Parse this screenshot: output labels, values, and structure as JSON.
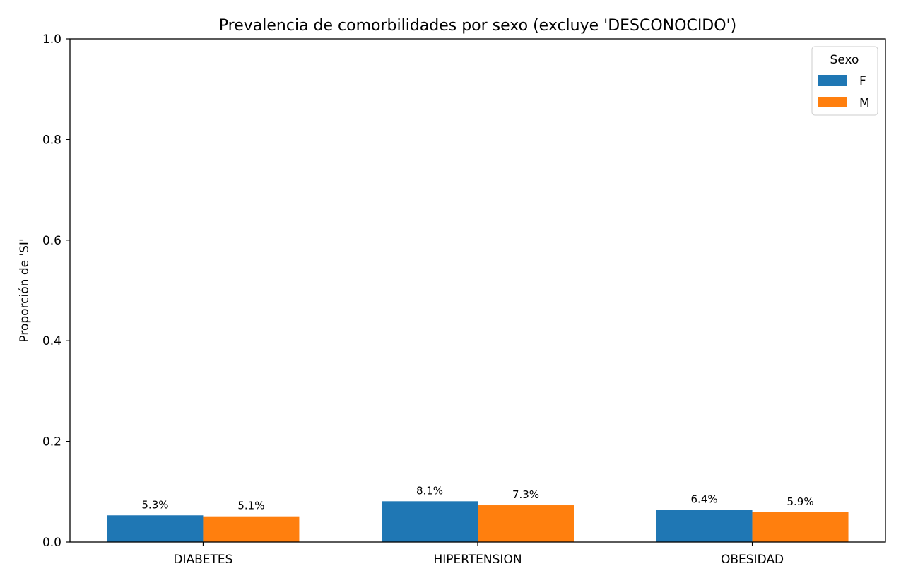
{
  "chart_data": {
    "type": "bar",
    "title": "Prevalencia de comorbilidades por sexo (excluye 'DESCONOCIDO')",
    "xlabel": "",
    "ylabel": "Proporción de 'SI'",
    "categories": [
      "DIABETES",
      "HIPERTENSION",
      "OBESIDAD"
    ],
    "series": [
      {
        "name": "F",
        "color": "#1f77b4",
        "values": [
          0.053,
          0.081,
          0.064
        ],
        "labels": [
          "5.3%",
          "8.1%",
          "6.4%"
        ]
      },
      {
        "name": "M",
        "color": "#ff7f0e",
        "values": [
          0.051,
          0.073,
          0.059
        ],
        "labels": [
          "5.1%",
          "7.3%",
          "5.9%"
        ]
      }
    ],
    "ylim": [
      0,
      1
    ],
    "yticks": [
      0.0,
      0.2,
      0.4,
      0.6,
      0.8,
      1.0
    ],
    "ytick_labels": [
      "0.0",
      "0.2",
      "0.4",
      "0.6",
      "0.8",
      "1.0"
    ],
    "grid": false,
    "legend": {
      "title": "Sexo",
      "position": "top-right"
    }
  }
}
